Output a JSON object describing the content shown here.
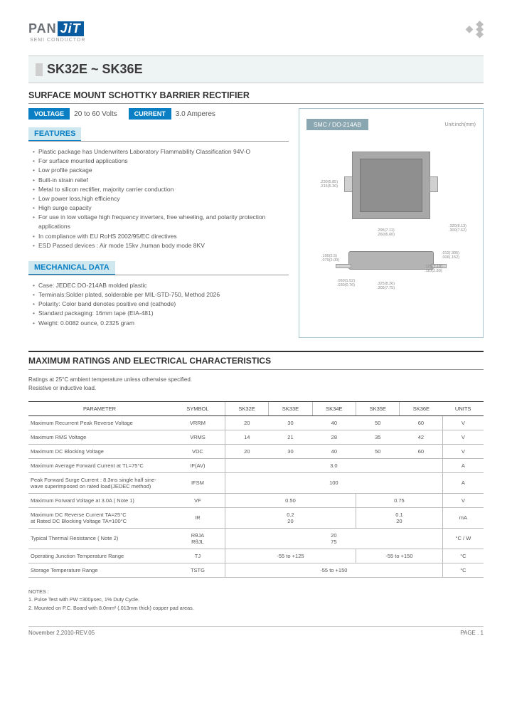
{
  "logo": {
    "part1": "PAN",
    "part2": "JiT",
    "sub": "SEMI\nCONDUCTOR"
  },
  "title": "SK32E ~ SK36E",
  "subtitle": "SURFACE MOUNT SCHOTTKY BARRIER RECTIFIER",
  "badges": {
    "voltage_label": "VOLTAGE",
    "voltage_val": "20 to 60 Volts",
    "current_label": "CURRENT",
    "current_val": "3.0 Amperes",
    "pkg": "SMC / DO-214AB",
    "unit": "Unit:inch(mm)"
  },
  "features_head": "FEATURES",
  "features": [
    "Plastic package has Underwriters Laboratory Flammability Classification 94V-O",
    "For surface mounted applications",
    "Low profile package",
    "Built-in strain relief",
    "Metal to silicon rectifier, majority carrier conduction",
    "Low power loss,high efficiency",
    "High surge capacity",
    "For use in low voltage high frequency inverters, free wheeling, and polarity protection applications",
    "In compliance with EU RoHS 2002/95/EC directives",
    "ESD Passed devices : Air mode 15kv ,human body mode 8KV"
  ],
  "mech_head": "MECHANICAL DATA",
  "mech": [
    "Case: JEDEC DO-214AB molded plastic",
    "Terminals:Solder plated, solderable per MIL-STD-750, Method 2026",
    "Polarity: Color band denotes positive end (cathode)",
    "Standard packaging: 16mm tape (EIA-481)",
    "Weight: 0.0082 ounce, 0.2325 gram"
  ],
  "ratings_title": "MAXIMUM RATINGS AND ELECTRICAL CHARACTERISTICS",
  "ratings_note1": "Ratings at 25°C ambient temperature unless otherwise specified.",
  "ratings_note2": "Resistive or inductive load.",
  "table": {
    "head": [
      "PARAMETER",
      "SYMBOL",
      "SK32E",
      "SK33E",
      "SK34E",
      "SK35E",
      "SK36E",
      "UNITS"
    ],
    "rows": [
      {
        "p": "Maximum Recurrent Peak Reverse Voltage",
        "s": "VRRM",
        "v": [
          "20",
          "30",
          "40",
          "50",
          "60"
        ],
        "u": "V"
      },
      {
        "p": "Maximum RMS Voltage",
        "s": "VRMS",
        "v": [
          "14",
          "21",
          "28",
          "35",
          "42"
        ],
        "u": "V"
      },
      {
        "p": "Maximum DC Blocking Voltage",
        "s": "VDC",
        "v": [
          "20",
          "30",
          "40",
          "50",
          "60"
        ],
        "u": "V"
      },
      {
        "p": "Maximum Average Forward  Current at TL=75°C",
        "s": "IF(AV)",
        "span": "3.0",
        "u": "A"
      },
      {
        "p": "Peak Forward Surge Current : 8.3ms single half sine-wave superimposed on rated load(JEDEC method)",
        "s": "IFSM",
        "span": "100",
        "u": "A"
      },
      {
        "p": "Maximum Forward Voltage at 3.0A  ( Note 1)",
        "s": "VF",
        "v2": [
          "0.50",
          "0.75"
        ],
        "u": "V"
      },
      {
        "p": "Maximum DC Reverse Current  TA=25°C\nat Rated DC Blocking Voltage TA=100°C",
        "s": "IR",
        "v2": [
          "0.2\n20",
          "0.1\n20"
        ],
        "u": "mA"
      },
      {
        "p": "Typical Thermal Resistance ( Note 2)",
        "s": "RθJA\nRθJL",
        "span": "20\n75",
        "u": "°C / W"
      },
      {
        "p": "Operating Junction Temperature Range",
        "s": "TJ",
        "v2": [
          "-55 to +125",
          "-55 to +150"
        ],
        "u": "°C"
      },
      {
        "p": "Storage Temperature Range",
        "s": "TSTG",
        "span": "-55 to +150",
        "u": "°C"
      }
    ]
  },
  "notes_head": "NOTES :",
  "notes": [
    "1. Pulse Test with PW =300μsec, 1% Duty Cycle.",
    "2. Mounted on P.C. Board with 8.0mm² (.013mm thick) copper pad areas."
  ],
  "footer": {
    "left": "November 2,2010-REV.05",
    "right": "PAGE  .  1"
  }
}
